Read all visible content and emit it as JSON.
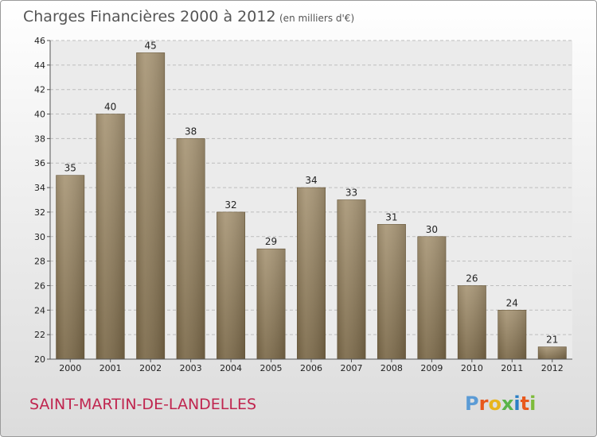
{
  "title": "Charges Financières 2000 à 2012",
  "unit": "(en milliers d'€)",
  "commune": "SAINT-MARTIN-DE-LANDELLES",
  "logo": {
    "text": "Proxiti",
    "colors": [
      "#5b9bd5",
      "#e8581c",
      "#e8b51c",
      "#59b44a",
      "#2a7fc4",
      "#e8581c",
      "#7dbb3a"
    ]
  },
  "chart_data": {
    "type": "bar",
    "title": "Charges Financières 2000 à 2012",
    "subtitle": "(en milliers d'€)",
    "categories": [
      "2000",
      "2001",
      "2002",
      "2003",
      "2004",
      "2005",
      "2006",
      "2007",
      "2008",
      "2009",
      "2010",
      "2011",
      "2012"
    ],
    "values": [
      35,
      40,
      45,
      38,
      32,
      29,
      34,
      33,
      31,
      30,
      26,
      24,
      21
    ],
    "ylim": [
      20,
      46
    ],
    "yticks": [
      20,
      22,
      24,
      26,
      28,
      30,
      32,
      34,
      36,
      38,
      40,
      42,
      44,
      46
    ],
    "grid": true,
    "bar_color_top": "#a89676",
    "bar_color_bottom": "#7a6848"
  }
}
